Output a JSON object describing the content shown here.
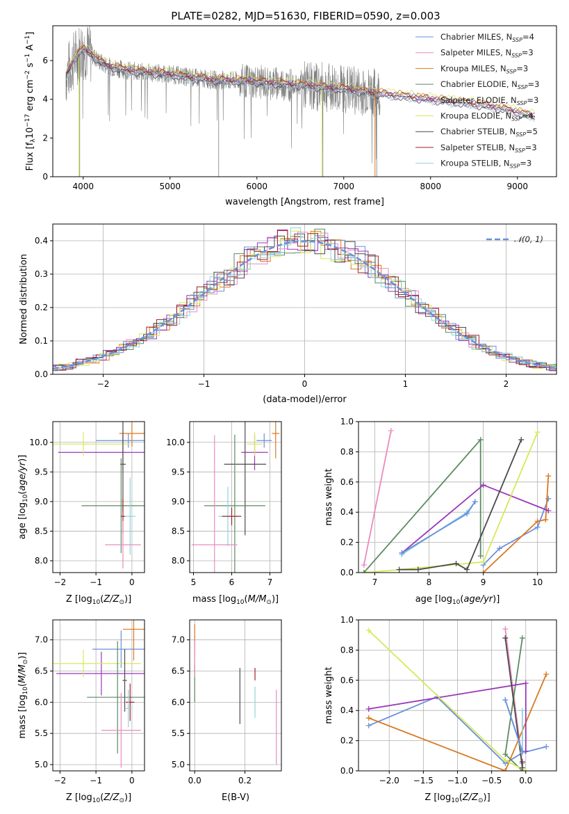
{
  "title": "PLATE=0282, MJD=51630, FIBERID=0590, z=0.003",
  "colors": {
    "c0": "#6a8fdc",
    "c1": "#e98ac0",
    "c2": "#d9781f",
    "c3": "#5b8a60",
    "c4": "#9a36b8",
    "c5": "#d8e85a",
    "c6": "#4a4a4a",
    "c7": "#a01f2a",
    "c8": "#8fd3dd",
    "data": "#7f7f7f",
    "grid": "#b0b0b0"
  },
  "chart_data": [
    {
      "id": "spectrum",
      "type": "line",
      "xlabel": "wavelength [Angstrom, rest frame]",
      "ylabel": "Flux [f",
      "ylabel_parts": [
        "Flux [f",
        "λ",
        "10",
        "−17",
        " erg cm",
        "−2",
        " s",
        "−1",
        " A",
        "−1",
        "]"
      ],
      "xlim": [
        3650,
        9450
      ],
      "ylim": [
        0,
        7.8
      ],
      "xticks": [
        "4000",
        "5000",
        "6000",
        "7000",
        "8000",
        "9000"
      ],
      "yticks": [
        "0",
        "2",
        "4",
        "6"
      ],
      "continuum": {
        "x": [
          3800,
          3900,
          3950,
          4000,
          4100,
          4200,
          4300,
          4500,
          4700,
          5000,
          5200,
          5500,
          5800,
          6000,
          6300,
          6600,
          6800,
          7000,
          7200,
          7400,
          7600,
          7800,
          8000,
          8300,
          8600,
          8900,
          9200
        ],
        "y": [
          5.2,
          6.1,
          6.4,
          6.6,
          6.3,
          5.9,
          5.7,
          5.5,
          5.4,
          5.3,
          5.15,
          5.0,
          4.95,
          4.9,
          4.8,
          4.7,
          4.6,
          4.55,
          4.4,
          4.3,
          4.2,
          4.1,
          4.0,
          3.85,
          3.7,
          3.45,
          3.1
        ]
      },
      "legend": [
        {
          "label": "Chabrier MILES, N",
          "sub": "SSP",
          "n": "=4"
        },
        {
          "label": "Salpeter MILES, N",
          "sub": "SSP",
          "n": "=3"
        },
        {
          "label": "Kroupa MILES, N",
          "sub": "SSP",
          "n": "=3"
        },
        {
          "label": "Chabrier ELODIE, N",
          "sub": "SSP",
          "n": "=3"
        },
        {
          "label": "Salpeter ELODIE, N",
          "sub": "SSP",
          "n": "=3"
        },
        {
          "label": "Kroupa ELODIE, N",
          "sub": "SSP",
          "n": "=4"
        },
        {
          "label": "Chabrier STELIB, N",
          "sub": "SSP",
          "n": "=5"
        },
        {
          "label": "Salpeter STELIB, N",
          "sub": "SSP",
          "n": "=3"
        },
        {
          "label": "Kroupa STELIB, N",
          "sub": "SSP",
          "n": "=3"
        }
      ]
    },
    {
      "id": "residuals",
      "type": "histogram",
      "xlabel": "(data-model)/error",
      "ylabel": "Normed distribution",
      "xlim": [
        -2.5,
        2.5
      ],
      "ylim": [
        0,
        0.45
      ],
      "xticks": [
        "−2",
        "−1",
        "0",
        "1",
        "2"
      ],
      "xtick_values": [
        -2,
        -1,
        0,
        1,
        2
      ],
      "yticks": [
        "0.0",
        "0.1",
        "0.2",
        "0.3",
        "0.4"
      ],
      "ytick_values": [
        0,
        0.1,
        0.2,
        0.3,
        0.4
      ],
      "bin_width": 0.1,
      "legend": "𝒩(0, 1)"
    },
    {
      "id": "age-vs-Z",
      "type": "scatter",
      "xlabel": "Z [log",
      "ylabel": "age  [log",
      "xlim": [
        -2.2,
        0.35
      ],
      "ylim": [
        7.8,
        10.35
      ],
      "xticks": [
        "−2",
        "−1",
        "0"
      ],
      "xtick_values": [
        -2,
        -1,
        0
      ],
      "yticks": [
        "8.0",
        "8.5",
        "9.0",
        "9.5",
        "10.0"
      ],
      "ytick_values": [
        8,
        8.5,
        9,
        9.5,
        10
      ],
      "points": [
        {
          "s": 0,
          "x": -0.1,
          "y": 10.03,
          "ex": 0.9,
          "ey": 0.12
        },
        {
          "s": 2,
          "x": 0.0,
          "y": 10.15,
          "ex": 0.35,
          "ey": 0.22
        },
        {
          "s": 4,
          "x": -0.25,
          "y": 9.83,
          "ex": 1.8,
          "ey": 0.3
        },
        {
          "s": 5,
          "x": -1.35,
          "y": 9.97,
          "ex": 1.3,
          "ey": 0.2
        },
        {
          "s": 6,
          "x": -0.25,
          "y": 9.63,
          "ex": 0.08,
          "ey": 0.8
        },
        {
          "s": 3,
          "x": -0.3,
          "y": 8.93,
          "ex": 1.1,
          "ey": 0.8
        },
        {
          "s": 8,
          "x": -0.05,
          "y": 8.75,
          "ex": 0.15,
          "ey": 0.65
        },
        {
          "s": 7,
          "x": -0.25,
          "y": 8.75,
          "ex": 0.06,
          "ey": 0.3
        },
        {
          "s": 1,
          "x": -0.25,
          "y": 8.27,
          "ex": 0.5,
          "ey": 0.4
        }
      ]
    },
    {
      "id": "age-vs-mass",
      "type": "scatter",
      "xlabel": "mass [log",
      "ylabel": "",
      "xlim": [
        4.9,
        7.3
      ],
      "ylim": [
        7.8,
        10.35
      ],
      "xticks": [
        "5",
        "6",
        "7"
      ],
      "xtick_values": [
        5,
        6,
        7
      ],
      "yticks": [
        "8.0",
        "8.5",
        "9.0",
        "9.5",
        "10.0"
      ],
      "ytick_values": [
        8,
        8.5,
        9,
        9.5,
        10
      ],
      "points": [
        {
          "s": 0,
          "x": 6.85,
          "y": 10.03,
          "ex": 0.2,
          "ey": 0.12
        },
        {
          "s": 2,
          "x": 7.15,
          "y": 10.15,
          "ex": 0.1,
          "ey": 0.42
        },
        {
          "s": 4,
          "x": 6.6,
          "y": 9.83,
          "ex": 0.35,
          "ey": 0.3
        },
        {
          "s": 5,
          "x": 6.6,
          "y": 9.97,
          "ex": 0.2,
          "ey": 0.2
        },
        {
          "s": 6,
          "x": 6.35,
          "y": 9.63,
          "ex": 0.55,
          "ey": 1.2
        },
        {
          "s": 3,
          "x": 6.08,
          "y": 8.93,
          "ex": 0.8,
          "ey": 1.2
        },
        {
          "s": 8,
          "x": 5.9,
          "y": 8.75,
          "ex": 0.25,
          "ey": 0.5
        },
        {
          "s": 7,
          "x": 6.0,
          "y": 8.75,
          "ex": 0.25,
          "ey": 0.15
        },
        {
          "s": 1,
          "x": 5.55,
          "y": 8.27,
          "ex": 0.6,
          "ey": 1.85
        }
      ]
    },
    {
      "id": "weight-vs-age",
      "type": "line",
      "xlabel": "age  [log",
      "ylabel": "mass weight",
      "xlim": [
        6.7,
        10.35
      ],
      "ylim": [
        0,
        1.0
      ],
      "xticks": [
        "7",
        "8",
        "9",
        "10"
      ],
      "xtick_values": [
        7,
        8,
        9,
        10
      ],
      "yticks": [
        "0.0",
        "0.2",
        "0.4",
        "0.6",
        "0.8",
        "1.0"
      ],
      "ytick_values": [
        0,
        0.2,
        0.4,
        0.6,
        0.8,
        1.0
      ],
      "series": [
        {
          "s": 0,
          "x": [
            9.0,
            9.3,
            10.0,
            10.2
          ],
          "y": [
            0.05,
            0.16,
            0.3,
            0.49
          ]
        },
        {
          "s": 1,
          "x": [
            6.8,
            7.3
          ],
          "y": [
            0.05,
            0.94
          ]
        },
        {
          "s": 2,
          "x": [
            9.0,
            10.0,
            10.15,
            10.2
          ],
          "y": [
            0.0,
            0.34,
            0.35,
            0.64
          ]
        },
        {
          "s": 3,
          "x": [
            6.8,
            8.95,
            8.95
          ],
          "y": [
            0.0,
            0.88,
            0.11
          ]
        },
        {
          "s": 4,
          "x": [
            7.5,
            9.0,
            10.2
          ],
          "y": [
            0.13,
            0.58,
            0.41
          ]
        },
        {
          "s": 5,
          "x": [
            6.85,
            9.0,
            10.0
          ],
          "y": [
            0.0,
            0.07,
            0.93
          ]
        },
        {
          "s": 6,
          "x": [
            7.45,
            7.8,
            8.5,
            8.7,
            9.7
          ],
          "y": [
            0.02,
            0.02,
            0.06,
            0.02,
            0.88
          ]
        },
        {
          "s": 8,
          "x": [
            7.5,
            8.7,
            8.85
          ],
          "y": [
            0.12,
            0.4,
            0.47
          ]
        },
        {
          "s": 0,
          "x": [
            7.5,
            8.7,
            8.85
          ],
          "y": [
            0.13,
            0.39,
            0.47
          ]
        }
      ]
    },
    {
      "id": "mass-vs-Z",
      "type": "scatter",
      "xlabel": "Z [log",
      "ylabel": "mass [log",
      "xlim": [
        -2.2,
        0.35
      ],
      "ylim": [
        4.9,
        7.32
      ],
      "xticks": [
        "−2",
        "−1",
        "0"
      ],
      "xtick_values": [
        -2,
        -1,
        0
      ],
      "yticks": [
        "5.0",
        "5.5",
        "6.0",
        "6.5",
        "7.0"
      ],
      "ytick_values": [
        5,
        5.5,
        6,
        6.5,
        7
      ],
      "points": [
        {
          "s": 0,
          "x": -0.3,
          "y": 6.85,
          "ex": 0.8,
          "ey": 0.3
        },
        {
          "s": 2,
          "x": 0.05,
          "y": 7.17,
          "ex": 0.3,
          "ey": 0.5
        },
        {
          "s": 4,
          "x": -0.85,
          "y": 6.46,
          "ex": 1.25,
          "ey": 0.35
        },
        {
          "s": 5,
          "x": -1.35,
          "y": 6.62,
          "ex": 1.6,
          "ey": 0.22
        },
        {
          "s": 6,
          "x": -0.2,
          "y": 6.35,
          "ex": 0.06,
          "ey": 0.5
        },
        {
          "s": 3,
          "x": -0.4,
          "y": 6.08,
          "ex": 0.85,
          "ey": 0.9
        },
        {
          "s": 7,
          "x": -0.05,
          "y": 6.0,
          "ex": 0.12,
          "ey": 0.3
        },
        {
          "s": 8,
          "x": -0.1,
          "y": 5.9,
          "ex": 0.1,
          "ey": 0.3
        },
        {
          "s": 1,
          "x": -0.3,
          "y": 5.55,
          "ex": 0.55,
          "ey": 0.6
        }
      ]
    },
    {
      "id": "mass-vs-EBV",
      "type": "scatter",
      "xlabel": "E(B-V)",
      "ylabel": "",
      "xlim": [
        -0.02,
        0.345
      ],
      "ylim": [
        4.9,
        7.32
      ],
      "xticks": [
        "0.0",
        "0.2"
      ],
      "xtick_values": [
        0,
        0.2
      ],
      "yticks": [
        "5.0",
        "5.5",
        "6.0",
        "6.5",
        "7.0"
      ],
      "ytick_values": [
        5,
        5.5,
        6,
        6.5,
        7
      ],
      "points": [
        {
          "s": 2,
          "x": 0.0,
          "y": 6.85,
          "ex": 0.0,
          "ey": 0.4
        },
        {
          "s": 5,
          "x": 0.0,
          "y": 6.6,
          "ex": 0.0,
          "ey": 0.25
        },
        {
          "s": 3,
          "x": 0.0,
          "y": 6.3,
          "ex": 0.0,
          "ey": 0.3
        },
        {
          "s": 1,
          "x": 0.0,
          "y": 6.7,
          "ex": 0.0,
          "ey": 0.3
        },
        {
          "s": 6,
          "x": 0.18,
          "y": 6.1,
          "ex": 0.0,
          "ey": 0.45
        },
        {
          "s": 7,
          "x": 0.24,
          "y": 6.45,
          "ex": 0.0,
          "ey": 0.1
        },
        {
          "s": 8,
          "x": 0.24,
          "y": 6.0,
          "ex": 0.0,
          "ey": 0.25
        },
        {
          "s": 1,
          "x": 0.325,
          "y": 5.6,
          "ex": 0.0,
          "ey": 0.6
        }
      ]
    },
    {
      "id": "weight-vs-Z",
      "type": "line",
      "xlabel": "Z [log",
      "ylabel": "mass weight",
      "xlim": [
        -2.45,
        0.45
      ],
      "ylim": [
        0,
        1.0
      ],
      "xticks": [
        "−2.0",
        "−1.5",
        "−1.0",
        "−0.5",
        "0.0"
      ],
      "xtick_values": [
        -2,
        -1.5,
        -1,
        -0.5,
        0
      ],
      "yticks": [
        "0.0",
        "0.2",
        "0.4",
        "0.6",
        "0.8",
        "1.0"
      ],
      "ytick_values": [
        0,
        0.2,
        0.4,
        0.6,
        0.8,
        1.0
      ],
      "series": [
        {
          "s": 0,
          "x": [
            -2.3,
            -1.3,
            -0.3,
            -0.05,
            0.3
          ],
          "y": [
            0.3,
            0.49,
            0.05,
            0.12,
            0.16
          ]
        },
        {
          "s": 1,
          "x": [
            -0.3,
            -0.05
          ],
          "y": [
            0.94,
            0.05
          ]
        },
        {
          "s": 2,
          "x": [
            -2.3,
            -0.3,
            0.3
          ],
          "y": [
            0.35,
            0.0,
            0.64
          ]
        },
        {
          "s": 3,
          "x": [
            -0.05,
            -0.3,
            -0.05
          ],
          "y": [
            0.88,
            0.11,
            0.0
          ]
        },
        {
          "s": 4,
          "x": [
            -2.3,
            0.0,
            0.0
          ],
          "y": [
            0.41,
            0.58,
            0.13
          ]
        },
        {
          "s": 5,
          "x": [
            -2.3,
            -0.3,
            0.0
          ],
          "y": [
            0.93,
            0.07,
            0.0
          ]
        },
        {
          "s": 6,
          "x": [
            -0.3,
            -0.05,
            -0.05
          ],
          "y": [
            0.88,
            0.02,
            0.06
          ]
        },
        {
          "s": 8,
          "x": [
            -0.3,
            -0.05,
            -0.05
          ],
          "y": [
            0.47,
            0.12,
            0.4
          ]
        },
        {
          "s": 0,
          "x": [
            -0.3,
            -0.05
          ],
          "y": [
            0.47,
            0.13
          ]
        }
      ]
    }
  ]
}
